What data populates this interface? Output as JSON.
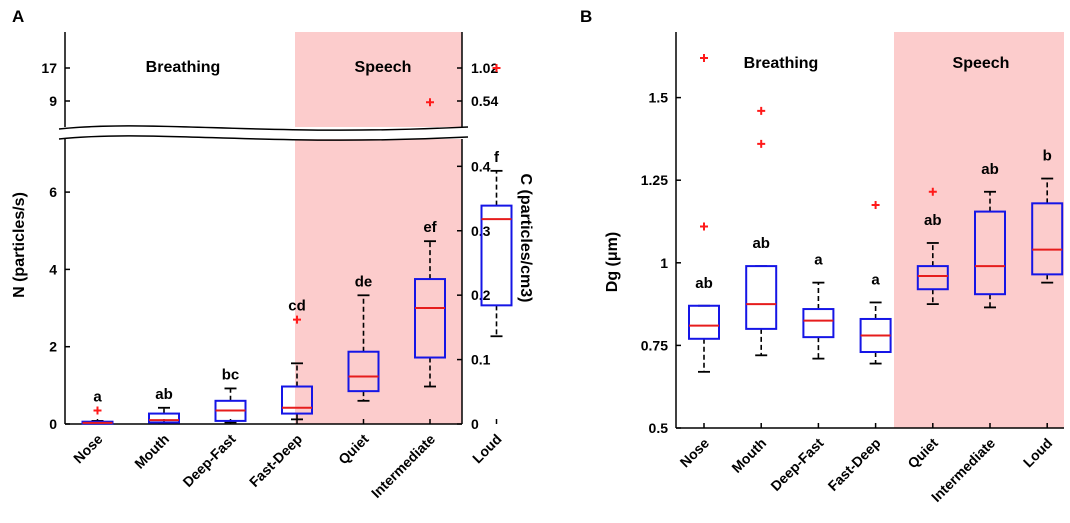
{
  "colors": {
    "speech_shade": "#fccccc",
    "box": "#1515e6",
    "median": "#e61c1c",
    "whisker": "#000000",
    "outlier": "#ff1a1a"
  },
  "chart_data": [
    {
      "panel": "A",
      "type": "box",
      "categories": [
        "Nose",
        "Mouth",
        "Deep-Fast",
        "Fast-Deep",
        "Quiet",
        "Intermediate",
        "Loud"
      ],
      "groups": [
        {
          "label": "Breathing",
          "categories": [
            "Nose",
            "Mouth",
            "Deep-Fast",
            "Fast-Deep"
          ]
        },
        {
          "label": "Speech",
          "categories": [
            "Quiet",
            "Intermediate",
            "Loud"
          ],
          "shaded": true
        }
      ],
      "ylabel_left": "N (particles/s)",
      "ylabel_right": "C (particles/cm3)",
      "left_ticks_lower": [
        "0",
        "2",
        "4",
        "6"
      ],
      "left_ticks_upper": [
        "9",
        "17"
      ],
      "right_ticks_lower": [
        "0",
        "0.1",
        "0.2",
        "0.3",
        "0.4"
      ],
      "right_ticks_upper": [
        "0.54",
        "1.02"
      ],
      "axis_break": true,
      "ylim_lower": [
        0,
        7.4
      ],
      "ylim_upper": [
        7.4,
        20
      ],
      "boxes": [
        {
          "category": "Nose",
          "whislo": 0.01,
          "q1": 0.01,
          "median": 0.03,
          "q3": 0.06,
          "whishi": 0.08,
          "outliers": [
            0.35
          ],
          "sig": "a"
        },
        {
          "category": "Mouth",
          "whislo": 0.02,
          "q1": 0.04,
          "median": 0.1,
          "q3": 0.27,
          "whishi": 0.42,
          "outliers": [],
          "sig": "ab"
        },
        {
          "category": "Deep-Fast",
          "whislo": 0.04,
          "q1": 0.08,
          "median": 0.35,
          "q3": 0.6,
          "whishi": 0.92,
          "outliers": [],
          "sig": "bc"
        },
        {
          "category": "Fast-Deep",
          "whislo": 0.12,
          "q1": 0.27,
          "median": 0.42,
          "q3": 0.97,
          "whishi": 1.57,
          "outliers": [
            2.7
          ],
          "sig": "cd"
        },
        {
          "category": "Quiet",
          "whislo": 0.6,
          "q1": 0.85,
          "median": 1.23,
          "q3": 1.87,
          "whishi": 3.33,
          "outliers": [],
          "sig": "de"
        },
        {
          "category": "Intermediate",
          "whislo": 0.97,
          "q1": 1.72,
          "median": 3.0,
          "q3": 3.75,
          "whishi": 4.73,
          "outliers": [
            8.7
          ],
          "sig": "ef"
        },
        {
          "category": "Loud",
          "whislo": 2.27,
          "q1": 3.07,
          "median": 5.3,
          "q3": 5.65,
          "whishi": 6.55,
          "outliers": [
            17.0
          ],
          "sig": "f"
        }
      ]
    },
    {
      "panel": "B",
      "type": "box",
      "categories": [
        "Nose",
        "Mouth",
        "Deep-Fast",
        "Fast-Deep",
        "Quiet",
        "Intermediate",
        "Loud"
      ],
      "groups": [
        {
          "label": "Breathing",
          "categories": [
            "Nose",
            "Mouth",
            "Deep-Fast",
            "Fast-Deep"
          ]
        },
        {
          "label": "Speech",
          "categories": [
            "Quiet",
            "Intermediate",
            "Loud"
          ],
          "shaded": true
        }
      ],
      "ylabel": "Dg (μm)",
      "yticks": [
        "0.5",
        "0.75",
        "1",
        "1.25",
        "1.5"
      ],
      "ylim": [
        0.5,
        1.65
      ],
      "boxes": [
        {
          "category": "Nose",
          "whislo": 0.67,
          "q1": 0.77,
          "median": 0.81,
          "q3": 0.87,
          "whishi": 0.87,
          "outliers": [
            1.11,
            1.62
          ],
          "sig": "ab"
        },
        {
          "category": "Mouth",
          "whislo": 0.72,
          "q1": 0.8,
          "median": 0.875,
          "q3": 0.99,
          "whishi": 0.99,
          "outliers": [
            1.36,
            1.46
          ],
          "sig": "ab"
        },
        {
          "category": "Deep-Fast",
          "whislo": 0.71,
          "q1": 0.775,
          "median": 0.825,
          "q3": 0.86,
          "whishi": 0.94,
          "outliers": [],
          "sig": "a"
        },
        {
          "category": "Fast-Deep",
          "whislo": 0.695,
          "q1": 0.73,
          "median": 0.78,
          "q3": 0.83,
          "whishi": 0.88,
          "outliers": [
            1.175
          ],
          "sig": "a"
        },
        {
          "category": "Quiet",
          "whislo": 0.875,
          "q1": 0.92,
          "median": 0.96,
          "q3": 0.99,
          "whishi": 1.06,
          "outliers": [
            1.215
          ],
          "sig": "ab"
        },
        {
          "category": "Intermediate",
          "whislo": 0.865,
          "q1": 0.905,
          "median": 0.99,
          "q3": 1.155,
          "whishi": 1.215,
          "outliers": [],
          "sig": "ab"
        },
        {
          "category": "Loud",
          "whislo": 0.94,
          "q1": 0.965,
          "median": 1.04,
          "q3": 1.18,
          "whishi": 1.255,
          "outliers": [],
          "sig": "b"
        }
      ]
    }
  ]
}
